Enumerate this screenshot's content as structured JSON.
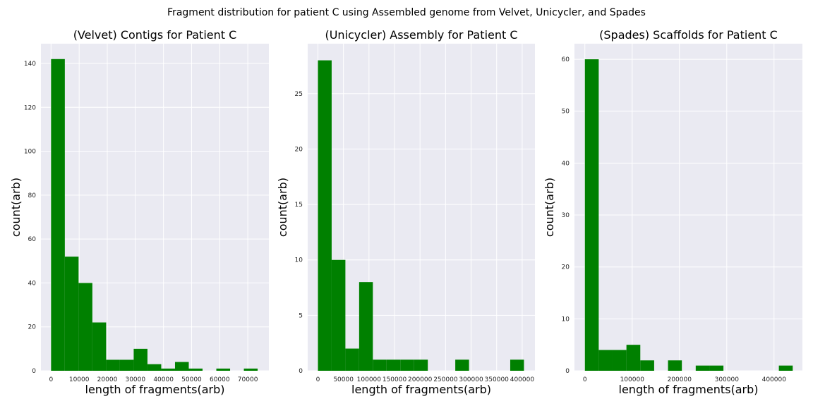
{
  "figure": {
    "suptitle": "Fragment distribution for patient C using Assembled genome from Velvet, Unicycler, and Spades",
    "colors": {
      "bar": "#008000",
      "axes_bg": "#eaeaf2",
      "grid": "#ffffff"
    }
  },
  "chart_data": [
    {
      "type": "bar",
      "title": "(Velvet) Contigs for Patient C",
      "xlabel": "length of fragments(arb)",
      "ylabel": "count(arb)",
      "xlim": [
        -3600,
        77500
      ],
      "ylim": [
        0,
        149
      ],
      "xticks": [
        0,
        10000,
        20000,
        30000,
        40000,
        50000,
        60000,
        70000
      ],
      "yticks": [
        0,
        20,
        40,
        60,
        80,
        100,
        120,
        140
      ],
      "bin_edges": [
        0,
        4900,
        9800,
        14700,
        19600,
        24500,
        29400,
        34300,
        39200,
        44100,
        49000,
        53900,
        58800,
        63700,
        68600,
        73500
      ],
      "values": [
        142,
        52,
        40,
        22,
        5,
        5,
        10,
        3,
        1,
        4,
        1,
        0,
        1,
        0,
        1
      ],
      "grid": true,
      "legend": "none"
    },
    {
      "type": "bar",
      "title": "(Unicycler) Assembly for Patient C",
      "xlabel": "length of fragments(arb)",
      "ylabel": "count(arb)",
      "xlim": [
        -20000,
        425000
      ],
      "ylim": [
        0,
        29.5
      ],
      "xticks": [
        0,
        50000,
        100000,
        150000,
        200000,
        250000,
        300000,
        350000,
        400000
      ],
      "yticks": [
        0,
        5,
        10,
        15,
        20,
        25
      ],
      "bin_edges": [
        0,
        26900,
        53800,
        80700,
        107600,
        134500,
        161400,
        188300,
        215200,
        242100,
        269000,
        295900,
        322800,
        349700,
        376600,
        403500
      ],
      "values": [
        28,
        10,
        2,
        8,
        1,
        1,
        1,
        1,
        0,
        0,
        1,
        0,
        0,
        0,
        1
      ],
      "grid": true,
      "legend": "none"
    },
    {
      "type": "bar",
      "title": "(Spades) Scaffolds for Patient C",
      "xlabel": "length of fragments(arb)",
      "ylabel": "count(arb)",
      "xlim": [
        -22000,
        460000
      ],
      "ylim": [
        0,
        63
      ],
      "xticks": [
        0,
        100000,
        200000,
        300000,
        400000
      ],
      "yticks": [
        0,
        10,
        20,
        30,
        40,
        50,
        60
      ],
      "bin_edges": [
        0,
        29300,
        58600,
        87900,
        117200,
        146500,
        175800,
        205100,
        234400,
        263700,
        293000,
        322300,
        351600,
        380900,
        410200,
        439500
      ],
      "values": [
        60,
        4,
        4,
        5,
        2,
        0,
        2,
        0,
        1,
        1,
        0,
        0,
        0,
        0,
        1
      ],
      "grid": true,
      "legend": "none"
    }
  ]
}
